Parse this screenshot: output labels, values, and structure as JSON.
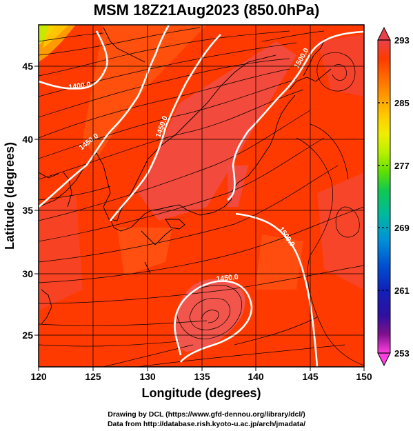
{
  "title": "MSM 18Z21Aug2023 (850.0hPa)",
  "footer": {
    "line1": "Drawing by DCL (https://www.gfd-dennou.org/library/dcl/)",
    "line2": "Data from http://database.rish.kyoto-u.ac.jp/arch/jmadata/"
  },
  "map": {
    "xlabel": "Longitude (degrees)",
    "ylabel": "Latitude  (degrees)",
    "xticks": [
      "120",
      "125",
      "130",
      "135",
      "140",
      "145",
      "150"
    ],
    "yticks": [
      "25",
      "30",
      "35",
      "40",
      "45"
    ],
    "contour_labels": [
      "1400.0",
      "1450.0",
      "1450.0",
      "1500.0",
      "1500.0",
      "1450.0"
    ]
  },
  "colorbar": {
    "ticks": [
      "293",
      "285",
      "277",
      "269",
      "261",
      "253"
    ],
    "colors": [
      "#e8424a",
      "#ff3a00",
      "#ff6a00",
      "#ff9a00",
      "#ffc800",
      "#f0ee00",
      "#b8f000",
      "#60e000",
      "#10c850",
      "#00b8a0",
      "#0090d8",
      "#0050d0",
      "#1020b8",
      "#3010a0",
      "#80108c",
      "#d010c0",
      "#ff40e0"
    ]
  }
}
